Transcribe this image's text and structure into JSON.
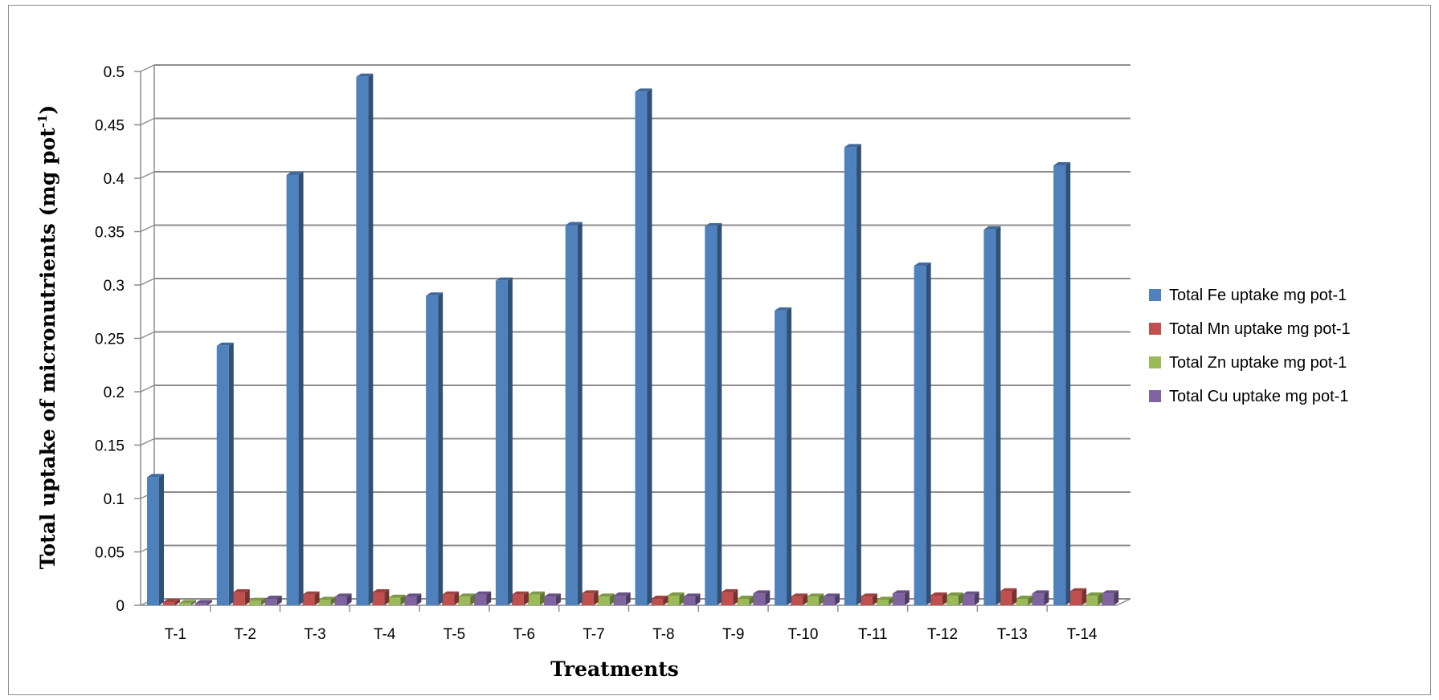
{
  "chart_data": {
    "type": "bar",
    "xlabel": "Treatments",
    "ylabel": "Total uptake of micronutrients (mg pot",
    "ylabel_sup": "-1",
    "ylabel_end": ")",
    "ylim": [
      0,
      0.5
    ],
    "yticks": [
      "0",
      "0.05",
      "0.1",
      "0.15",
      "0.2",
      "0.25",
      "0.3",
      "0.35",
      "0.4",
      "0.45",
      "0.5"
    ],
    "grid": true,
    "legend_position": "right",
    "categories": [
      "T-1",
      "T-2",
      "T-3",
      "T-4",
      "T-5",
      "T-6",
      "T-7",
      "T-8",
      "T-9",
      "T-10",
      "T-11",
      "T-12",
      "T-13",
      "T-14"
    ],
    "series": [
      {
        "name": "Total Fe uptake mg pot-1",
        "color": "#4f81bd",
        "values": [
          0.12,
          0.243,
          0.403,
          0.495,
          0.29,
          0.304,
          0.356,
          0.481,
          0.355,
          0.276,
          0.429,
          0.318,
          0.352,
          0.412
        ]
      },
      {
        "name": "Total Mn uptake mg pot-1",
        "color": "#c0504d",
        "values": [
          0.003,
          0.012,
          0.01,
          0.012,
          0.01,
          0.01,
          0.011,
          0.006,
          0.012,
          0.008,
          0.008,
          0.009,
          0.013,
          0.013
        ]
      },
      {
        "name": "Total Zn uptake mg pot-1",
        "color": "#9bbb59",
        "values": [
          0.002,
          0.004,
          0.005,
          0.007,
          0.008,
          0.01,
          0.008,
          0.009,
          0.006,
          0.008,
          0.005,
          0.009,
          0.006,
          0.009
        ]
      },
      {
        "name": "Total Cu uptake mg pot-1",
        "color": "#8064a2",
        "values": [
          0.002,
          0.006,
          0.008,
          0.008,
          0.01,
          0.008,
          0.009,
          0.008,
          0.011,
          0.008,
          0.011,
          0.01,
          0.011,
          0.011
        ]
      }
    ]
  }
}
